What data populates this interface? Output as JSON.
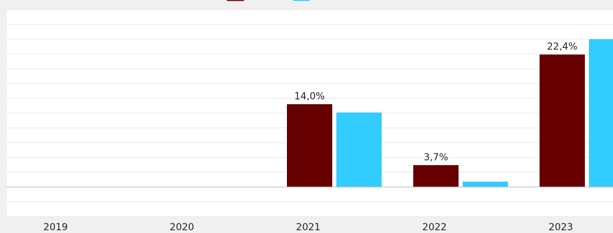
{
  "chart_data": {
    "type": "bar",
    "categories": [
      "2019",
      "2020",
      "2021",
      "2022",
      "2023"
    ],
    "series": [
      {
        "color": "#660000",
        "values": [
          null,
          null,
          14.0,
          3.7,
          22.4
        ],
        "data_labels": [
          "",
          "",
          "14,0%",
          "3,7%",
          "22,4%"
        ]
      },
      {
        "color": "#33ccff",
        "values": [
          null,
          null,
          12.6,
          0.9,
          25.0
        ]
      }
    ],
    "y_unit": "%",
    "ylim": [
      -5.0,
      30.0
    ],
    "gridlines": true,
    "legend_position": "top",
    "colors": {
      "background": "#f0f0f0",
      "plot_background": "#ffffff",
      "gridline": "#e8e8e8",
      "baseline": "#bdbdbd"
    }
  }
}
